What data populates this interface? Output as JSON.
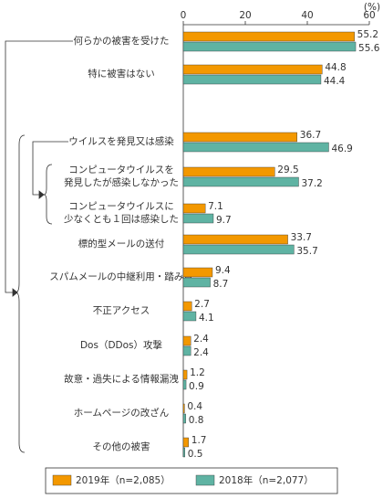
{
  "chart_data": {
    "type": "hbar",
    "x_label": "(%)",
    "categories": [
      "何らかの被害を受けた",
      "特に被害はない",
      "ウイルスを発見又は感染",
      "コンピュータウイルスを\n発見したが感染しなかった",
      "コンピュータウイルスに\n少なくとも１回は感染した",
      "標的型メールの送付",
      "スパムメールの中継利用・踏み台",
      "不正アクセス",
      "Dos（DDos）攻撃",
      "故意・過失による情報漏洩",
      "ホームページの改ざん",
      "その他の被害"
    ],
    "series": [
      {
        "name": "2019年（n=2,085）",
        "color": "#f39800",
        "values": [
          55.2,
          44.8,
          36.7,
          29.5,
          7.1,
          33.7,
          9.4,
          2.7,
          2.4,
          1.2,
          0.4,
          1.7
        ]
      },
      {
        "name": "2018年（n=2,077）",
        "color": "#5fb3a3",
        "values": [
          55.6,
          44.4,
          46.9,
          37.2,
          9.7,
          35.7,
          8.7,
          4.1,
          2.4,
          0.9,
          0.8,
          0.5
        ]
      }
    ],
    "xlim": [
      0,
      60
    ],
    "xticks": [
      0,
      20,
      40,
      60
    ]
  }
}
